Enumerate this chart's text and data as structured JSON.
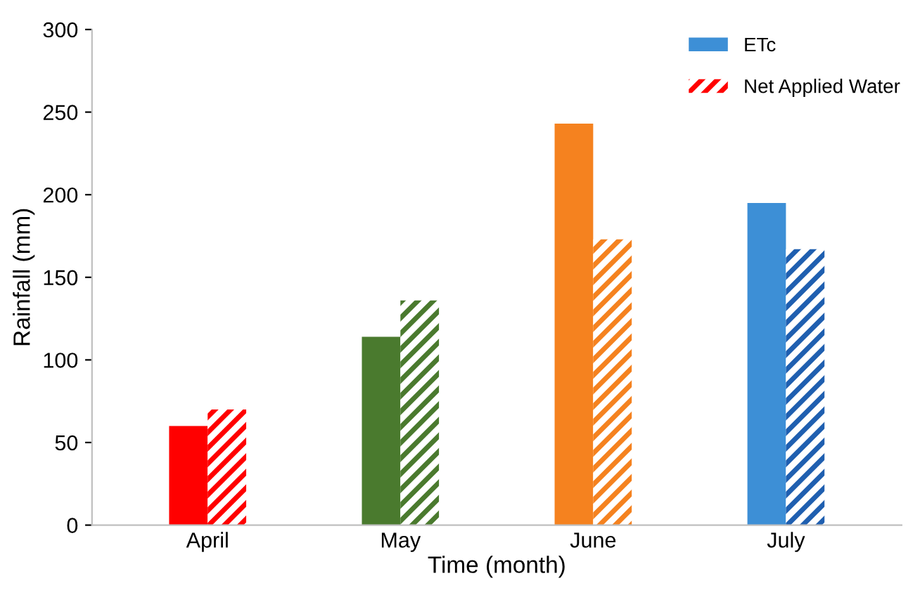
{
  "chart_data": {
    "type": "bar",
    "xlabel": "Time (month)",
    "ylabel": "Rainfall (mm)",
    "categories": [
      "April",
      "May",
      "June",
      "July"
    ],
    "series": [
      {
        "name": "ETc",
        "color": "#3d8fd6",
        "colors": [
          "#ff0000",
          "#4a7a2e",
          "#f5821f",
          "#3d8fd6"
        ],
        "values": [
          60,
          114,
          243,
          195
        ]
      },
      {
        "name": "Net Applied Water",
        "color": "#ff0000",
        "colors": [
          "#ff0000",
          "#4a7a2e",
          "#f5821f",
          "#1f5fb0"
        ],
        "values": [
          70,
          136,
          173,
          167
        ]
      }
    ],
    "ylim": [
      0,
      300
    ],
    "yticks": [
      0,
      50,
      100,
      150,
      200,
      250,
      300
    ],
    "grid": false,
    "legend": "top right"
  }
}
